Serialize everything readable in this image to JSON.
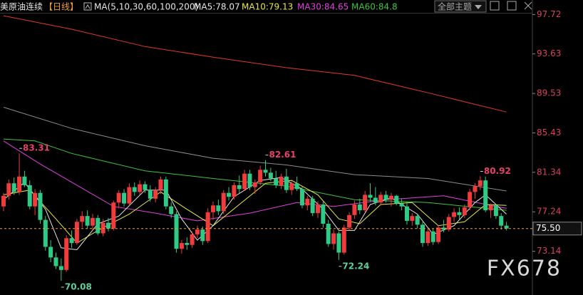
{
  "chart_data": {
    "type": "candlestick",
    "title": "美原油连续",
    "period": "【日线】",
    "indicator": "MA(5,10,30,60,100,200)",
    "theme_menu": "全部主题",
    "watermark": "FX678",
    "ylim": [
      68.6,
      97.9
    ],
    "yticks": [
      97.72,
      93.63,
      89.53,
      85.43,
      81.34,
      77.24,
      73.14
    ],
    "up_color": "#f03c3c",
    "down_color": "#2fcb86",
    "open": [
      77.8,
      78.9,
      80.2,
      79.3,
      80.9,
      80.0,
      77.8,
      79.2,
      76.4,
      73.6,
      72.5,
      71.6,
      71.2,
      74.5,
      74.0,
      76.2,
      76.8,
      75.8,
      76.6,
      75.0,
      76.1,
      75.5,
      78.2,
      79.2,
      78.1,
      79.8,
      79.3,
      80.1,
      79.5,
      78.6,
      79.5,
      80.6,
      77.8,
      77.0,
      73.4,
      74.0,
      73.8,
      74.9,
      75.4,
      74.2,
      77.2,
      77.9,
      77.3,
      79.2,
      78.8,
      80.0,
      79.6,
      81.2,
      79.8,
      80.3,
      81.6,
      81.3,
      80.7,
      80.0,
      80.9,
      79.5,
      80.2,
      79.6,
      77.9,
      78.6,
      77.1,
      78.0,
      76.0,
      73.9,
      75.0,
      73.0,
      75.6,
      76.9,
      78.0,
      77.4,
      79.0,
      78.7,
      78.2,
      79.0,
      78.5,
      78.9,
      78.1,
      77.8,
      76.3,
      76.8,
      75.9,
      74.0,
      75.2,
      74.1,
      75.6,
      75.4,
      76.7,
      77.2,
      76.9,
      77.7,
      79.3,
      79.9,
      80.5,
      77.4,
      77.9,
      76.8,
      75.8
    ],
    "high": [
      79.2,
      80.6,
      80.8,
      83.31,
      81.5,
      80.5,
      79.6,
      79.5,
      76.8,
      74.3,
      73.0,
      72.4,
      74.8,
      75.3,
      76.5,
      77.3,
      77.4,
      77.0,
      76.9,
      76.5,
      76.6,
      78.4,
      79.5,
      79.6,
      80.2,
      80.3,
      80.5,
      80.4,
      80.0,
      79.8,
      80.9,
      80.9,
      78.2,
      77.3,
      74.3,
      74.6,
      75.2,
      75.8,
      75.7,
      77.6,
      78.3,
      78.5,
      79.5,
      79.8,
      80.3,
      81.0,
      81.6,
      81.6,
      80.6,
      82.0,
      82.61,
      81.8,
      81.5,
      81.2,
      81.7,
      80.4,
      80.9,
      79.9,
      78.9,
      78.9,
      78.3,
      78.3,
      76.4,
      75.4,
      75.2,
      75.9,
      77.2,
      78.4,
      78.6,
      79.4,
      80.2,
      79.8,
      79.3,
      79.4,
      79.2,
      79.0,
      78.6,
      78.3,
      77.1,
      77.0,
      76.2,
      75.5,
      75.5,
      75.8,
      76.4,
      77.0,
      77.6,
      77.7,
      78.0,
      79.6,
      80.2,
      80.92,
      80.9,
      78.1,
      78.0,
      77.1,
      76.2
    ],
    "low": [
      77.3,
      78.5,
      79.0,
      79.0,
      79.8,
      77.5,
      76.9,
      76.0,
      73.2,
      72.0,
      71.3,
      70.08,
      71.0,
      73.5,
      73.8,
      75.6,
      75.5,
      75.3,
      74.8,
      74.7,
      75.2,
      75.3,
      77.6,
      77.8,
      77.9,
      78.9,
      79.0,
      79.2,
      78.3,
      78.2,
      79.1,
      77.5,
      76.6,
      73.0,
      72.9,
      73.3,
      73.5,
      74.5,
      73.8,
      74.0,
      76.4,
      76.9,
      77.0,
      78.4,
      78.5,
      79.2,
      79.4,
      79.5,
      79.1,
      80.0,
      80.9,
      80.4,
      79.7,
      79.6,
      79.2,
      79.0,
      79.4,
      77.6,
      77.4,
      76.8,
      76.6,
      75.6,
      73.6,
      73.3,
      72.24,
      72.8,
      75.3,
      76.5,
      77.0,
      77.2,
      78.3,
      77.9,
      77.9,
      78.2,
      77.8,
      77.9,
      77.4,
      75.9,
      75.8,
      75.5,
      73.6,
      73.7,
      73.8,
      73.9,
      75.1,
      75.2,
      76.2,
      76.4,
      76.6,
      77.4,
      78.6,
      79.5,
      77.2,
      76.6,
      76.5,
      75.4,
      75.3
    ],
    "close": [
      78.9,
      80.2,
      79.3,
      80.9,
      80.0,
      77.8,
      79.2,
      76.4,
      73.6,
      72.5,
      71.6,
      71.2,
      74.5,
      74.0,
      76.2,
      76.8,
      75.8,
      76.6,
      75.0,
      76.1,
      75.5,
      78.2,
      79.2,
      78.1,
      79.8,
      79.3,
      80.1,
      79.5,
      78.6,
      79.5,
      80.6,
      77.8,
      77.0,
      73.4,
      74.0,
      73.8,
      74.9,
      75.4,
      74.2,
      77.2,
      77.9,
      77.3,
      79.2,
      78.8,
      80.0,
      79.6,
      81.2,
      79.8,
      80.3,
      81.6,
      81.3,
      80.7,
      80.0,
      80.9,
      79.5,
      80.2,
      79.6,
      77.9,
      78.6,
      77.1,
      78.0,
      76.0,
      73.9,
      75.0,
      73.0,
      75.6,
      76.9,
      78.0,
      77.4,
      79.0,
      78.7,
      78.2,
      79.0,
      78.5,
      78.9,
      78.1,
      77.8,
      76.3,
      76.8,
      75.9,
      74.0,
      75.2,
      74.1,
      75.6,
      75.4,
      76.7,
      77.2,
      76.9,
      77.7,
      79.3,
      79.9,
      80.5,
      77.4,
      77.9,
      76.8,
      75.8,
      75.5
    ],
    "last_price_label": "75.50",
    "annotations": [
      "83.31",
      "82.61",
      "80.92",
      "72.24",
      "70.08"
    ],
    "series": [
      {
        "label": "MA5:78.07",
        "color": "#e6e6e6",
        "x": [
          0,
          4,
          8,
          11,
          14,
          18,
          22,
          27,
          31,
          34,
          37,
          40,
          44,
          49,
          53,
          57,
          61,
          64,
          67,
          70,
          74,
          79,
          82,
          86,
          90,
          92,
          96
        ],
        "values": [
          78.5,
          80.3,
          77.5,
          73.5,
          73.3,
          76.0,
          76.8,
          79.5,
          79.5,
          76.5,
          74.3,
          75.8,
          78.8,
          80.5,
          80.8,
          79.6,
          77.5,
          75.3,
          75.3,
          78.0,
          78.7,
          77.0,
          74.9,
          75.8,
          78.2,
          79.0,
          77.0
        ]
      },
      {
        "label": "MA10:79.13",
        "color": "#e8e83c",
        "x": [
          0,
          5,
          10,
          14,
          18,
          24,
          30,
          35,
          40,
          45,
          50,
          55,
          60,
          64,
          68,
          72,
          78,
          83,
          88,
          92,
          96
        ],
        "values": [
          79.0,
          79.5,
          76.5,
          74.0,
          75.3,
          77.0,
          79.3,
          77.5,
          75.8,
          78.0,
          80.2,
          80.5,
          79.0,
          76.5,
          76.0,
          78.0,
          78.2,
          75.8,
          76.2,
          78.0,
          77.9
        ]
      },
      {
        "label": "MA30:84.65",
        "color": "#e040e0",
        "x": [
          0,
          7,
          14,
          21,
          29,
          37,
          47,
          56,
          63,
          73,
          84,
          94,
          96
        ],
        "values": [
          84.6,
          82.2,
          80.0,
          77.8,
          77.1,
          76.3,
          77.1,
          78.2,
          77.8,
          78.5,
          78.9,
          77.8,
          77.6
        ]
      },
      {
        "label": "MA60:84.8",
        "color": "#3cc43c",
        "x": [
          0,
          6,
          13,
          27,
          40,
          54,
          67,
          81,
          96
        ],
        "values": [
          84.8,
          84.6,
          83.3,
          81.5,
          80.7,
          79.9,
          78.5,
          78.2,
          77.4
        ]
      },
      {
        "color": "#8c8c8c",
        "x": [
          0,
          13,
          27,
          40,
          54,
          67,
          81,
          96
        ],
        "values": [
          88.1,
          85.9,
          84.1,
          82.8,
          82.1,
          81.1,
          80.7,
          79.4
        ]
      },
      {
        "color": "#e0392a",
        "x": [
          0,
          13,
          27,
          40,
          54,
          67,
          81,
          96
        ],
        "values": [
          97.6,
          96.2,
          94.4,
          93.3,
          92.2,
          91.4,
          89.6,
          87.6
        ]
      }
    ]
  }
}
